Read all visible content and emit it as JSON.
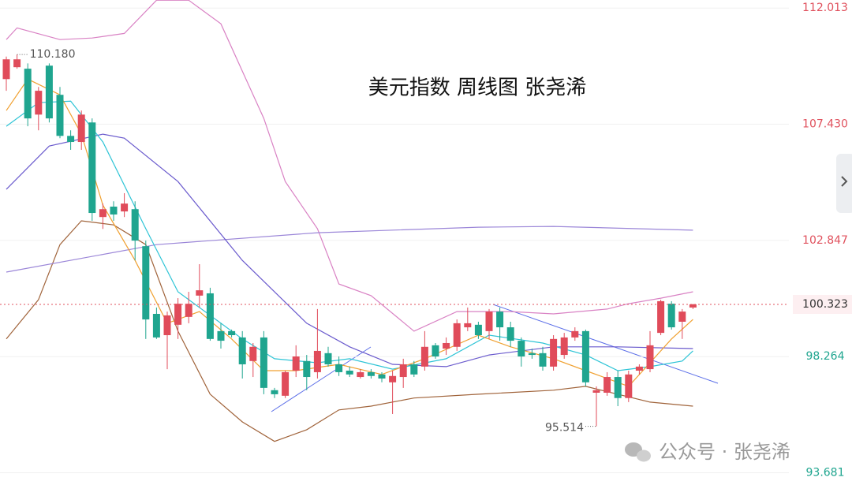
{
  "chart_data": {
    "type": "candlestick",
    "title": "美元指数 周线图 张尧浠",
    "up_color": "#e04b5a",
    "down_color": "#1fa58f",
    "open": [
      109.21,
      109.68,
      109.62,
      107.81,
      109.74,
      108.59,
      106.97,
      106.73,
      107.5,
      103.77,
      104.18,
      103.99,
      104.08,
      102.62,
      99.95,
      99.11,
      99.52,
      99.83,
      100.67,
      100.76,
      99.27,
      99.27,
      99.02,
      98.09,
      99.02,
      96.94,
      96.72,
      97.71,
      98.09,
      97.65,
      98.4,
      97.96,
      97.71,
      97.46,
      97.65,
      97.56,
      97.25,
      97.46,
      97.96,
      97.87,
      98.71,
      98.58,
      98.65,
      99.42,
      99.52,
      99.27,
      100.04,
      99.42,
      98.89,
      98.4,
      98.4,
      97.87,
      98.33,
      99.02,
      99.27,
      96.84,
      96.84,
      97.46,
      96.63,
      97.71,
      97.77,
      99.2,
      100.35,
      99.64,
      100.2
    ],
    "high": [
      110.1,
      110.18,
      109.83,
      108.9,
      109.83,
      108.9,
      107.19,
      107.97,
      107.66,
      104.3,
      104.39,
      104.71,
      104.39,
      102.84,
      100.2,
      100.04,
      100.57,
      100.82,
      101.91,
      100.98,
      99.58,
      99.33,
      99.27,
      98.8,
      99.27,
      97.03,
      97.71,
      98.71,
      98.33,
      100.14,
      98.65,
      98.27,
      97.87,
      97.77,
      97.77,
      97.65,
      97.71,
      98.18,
      98.09,
      99.27,
      98.8,
      99.02,
      99.73,
      100.2,
      99.64,
      100.14,
      100.2,
      99.64,
      99.02,
      98.58,
      98.65,
      99.11,
      99.2,
      99.42,
      99.33,
      97.09,
      97.65,
      97.71,
      97.71,
      97.96,
      99.27,
      100.51,
      100.45,
      100.14,
      100.35
    ],
    "low": [
      108.75,
      109.62,
      107.35,
      107.19,
      107.5,
      106.88,
      106.42,
      106.42,
      103.62,
      103.3,
      103.62,
      103.77,
      102.06,
      98.96,
      98.96,
      97.77,
      98.96,
      99.58,
      100.2,
      98.89,
      98.58,
      99.02,
      97.4,
      97.46,
      96.78,
      96.63,
      96.63,
      97.46,
      96.94,
      97.4,
      97.87,
      97.5,
      97.46,
      97.4,
      97.4,
      97.25,
      96.0,
      97.03,
      97.46,
      97.71,
      98.18,
      98.33,
      98.49,
      99.27,
      98.96,
      98.96,
      98.89,
      98.65,
      97.87,
      98.18,
      97.71,
      97.71,
      98.18,
      98.89,
      97.09,
      95.514,
      96.72,
      96.31,
      96.47,
      97.56,
      97.65,
      99.11,
      99.33,
      98.96,
      100.14
    ],
    "close": [
      109.99,
      109.99,
      107.66,
      108.75,
      107.66,
      106.97,
      106.73,
      107.81,
      103.93,
      104.08,
      103.87,
      104.3,
      102.84,
      99.73,
      99.02,
      99.89,
      100.35,
      100.35,
      100.88,
      98.96,
      98.89,
      99.11,
      97.96,
      98.65,
      97.03,
      96.78,
      97.65,
      98.27,
      97.46,
      98.49,
      97.96,
      97.65,
      97.56,
      97.65,
      97.5,
      97.4,
      97.5,
      97.96,
      97.56,
      98.65,
      98.27,
      98.8,
      99.58,
      99.58,
      99.11,
      100.04,
      99.42,
      98.89,
      98.27,
      98.33,
      97.87,
      98.96,
      99.02,
      99.27,
      97.25,
      96.94,
      97.46,
      96.63,
      97.56,
      97.87,
      98.71,
      100.45,
      99.42,
      100.04,
      100.323
    ],
    "lines": [
      {
        "color": "#d982c4",
        "x": [
          0,
          1,
          5,
          8,
          11,
          14,
          17,
          20,
          22,
          24,
          26,
          29,
          31,
          34,
          38,
          42,
          47,
          51,
          56,
          58,
          61,
          64
        ],
        "values": [
          110.77,
          111.23,
          110.77,
          110.83,
          111.01,
          112.32,
          112.32,
          111.39,
          109.52,
          107.66,
          105.17,
          103.31,
          101.13,
          100.67,
          99.27,
          100.04,
          100.04,
          99.95,
          100.14,
          100.35,
          100.57,
          100.82
        ]
      },
      {
        "color": "#a0633a",
        "x": [
          0,
          3,
          5,
          7,
          10,
          13,
          16,
          19,
          22,
          25,
          28,
          31,
          34,
          38,
          44,
          51,
          54,
          57,
          60,
          64
        ],
        "values": [
          98.96,
          100.51,
          102.68,
          103.62,
          103.46,
          102.68,
          99.27,
          96.78,
          95.69,
          94.92,
          95.38,
          96.16,
          96.31,
          96.63,
          96.78,
          96.94,
          97.09,
          96.78,
          96.47,
          96.31
        ]
      },
      {
        "color": "#9b86d8",
        "x": [
          0,
          14,
          29,
          44,
          51,
          64
        ],
        "values": [
          101.6,
          102.68,
          103.15,
          103.37,
          103.4,
          103.25
        ]
      },
      {
        "color": "#6a5acd",
        "x": [
          0,
          4,
          9,
          11,
          16,
          22,
          28,
          32,
          36,
          41,
          45,
          51,
          57,
          64
        ],
        "values": [
          104.86,
          106.57,
          107.04,
          106.88,
          105.17,
          102.06,
          99.58,
          98.65,
          97.96,
          97.87,
          98.33,
          98.65,
          98.65,
          98.58
        ]
      },
      {
        "color": "#2ec4d6",
        "x": [
          0,
          3,
          6,
          9,
          13,
          16,
          19,
          22,
          25,
          29,
          32,
          36,
          41,
          45,
          50,
          54,
          57,
          60,
          63,
          64
        ],
        "values": [
          107.35,
          108.28,
          108.34,
          106.73,
          103.31,
          100.82,
          99.89,
          98.96,
          98.18,
          98.02,
          98.18,
          97.77,
          98.18,
          99.11,
          98.8,
          98.33,
          97.71,
          97.87,
          98.09,
          98.49
        ]
      },
      {
        "color": "#f0a030",
        "x": [
          0,
          2,
          5,
          7,
          9,
          12,
          15,
          18,
          21,
          24,
          27,
          31,
          35,
          39,
          44,
          47,
          51,
          54,
          58,
          60,
          62,
          64
        ],
        "values": [
          107.97,
          109.21,
          108.59,
          107.04,
          104.24,
          102.06,
          99.58,
          100.04,
          98.96,
          97.71,
          97.71,
          97.96,
          97.56,
          98.18,
          99.11,
          98.65,
          98.18,
          97.71,
          97.09,
          98.02,
          98.96,
          99.73
        ]
      }
    ],
    "ylim": [
      93.2,
      112.33
    ],
    "yticks": [
      112.013,
      {
        "value": 107.43,
        "label": "107.430"
      },
      102.847,
      98.264,
      93.681
    ],
    "ytick_colors": [
      "#e0525e",
      "#e0525e",
      "#e0525e",
      "#1fa58f",
      "#1fa58f"
    ],
    "grid": true,
    "max_label": "110.180",
    "min_label": "95.514",
    "last_price": {
      "value": 100.323,
      "label": "100.323"
    },
    "watermark": "公众号 · 张尧浠"
  }
}
